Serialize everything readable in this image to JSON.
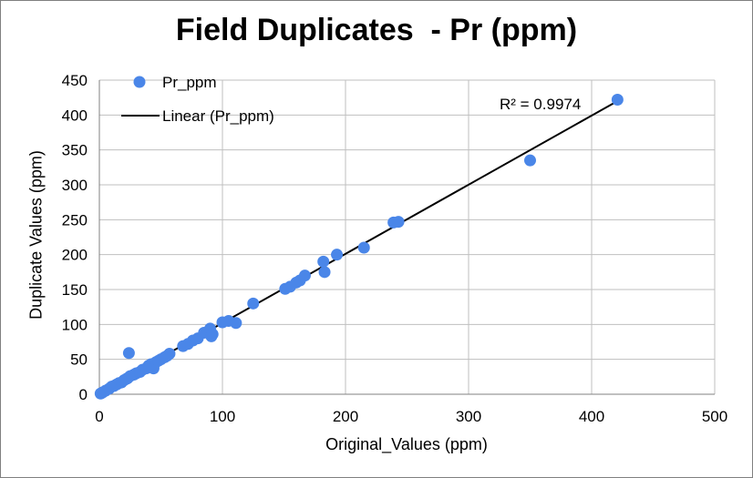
{
  "chart_data": {
    "type": "scatter",
    "title": "Field Duplicates  - Pr (ppm)",
    "xlabel": "Original_Values (ppm)",
    "ylabel": "Duplicate Values (ppm)",
    "xlim": [
      0,
      500
    ],
    "ylim": [
      0,
      450
    ],
    "xticks": [
      0,
      100,
      200,
      300,
      400,
      500
    ],
    "yticks": [
      0,
      50,
      100,
      150,
      200,
      250,
      300,
      350,
      400,
      450
    ],
    "grid": true,
    "legend_position": "top-left",
    "colors": {
      "points": "#4a86e8",
      "trendline": "#000000",
      "grid": "#bfbfbf"
    },
    "series": [
      {
        "name": "Pr_ppm",
        "points": [
          [
            1,
            1
          ],
          [
            2,
            2
          ],
          [
            3,
            3
          ],
          [
            5,
            5
          ],
          [
            8,
            8
          ],
          [
            10,
            11
          ],
          [
            12,
            12
          ],
          [
            14,
            14
          ],
          [
            16,
            16
          ],
          [
            18,
            17
          ],
          [
            20,
            20
          ],
          [
            22,
            22
          ],
          [
            23,
            23
          ],
          [
            24,
            59
          ],
          [
            25,
            26
          ],
          [
            28,
            28
          ],
          [
            30,
            30
          ],
          [
            33,
            32
          ],
          [
            35,
            35
          ],
          [
            38,
            37
          ],
          [
            40,
            41
          ],
          [
            42,
            43
          ],
          [
            44,
            37
          ],
          [
            46,
            46
          ],
          [
            48,
            48
          ],
          [
            50,
            50
          ],
          [
            53,
            53
          ],
          [
            55,
            55
          ],
          [
            57,
            58
          ],
          [
            68,
            69
          ],
          [
            72,
            72
          ],
          [
            76,
            77
          ],
          [
            80,
            80
          ],
          [
            85,
            88
          ],
          [
            90,
            94
          ],
          [
            91,
            83
          ],
          [
            92,
            86
          ],
          [
            100,
            103
          ],
          [
            105,
            105
          ],
          [
            111,
            102
          ],
          [
            125,
            130
          ],
          [
            151,
            151
          ],
          [
            155,
            154
          ],
          [
            160,
            160
          ],
          [
            163,
            163
          ],
          [
            167,
            170
          ],
          [
            182,
            190
          ],
          [
            183,
            175
          ],
          [
            193,
            200
          ],
          [
            215,
            210
          ],
          [
            239,
            246
          ],
          [
            243,
            247
          ],
          [
            350,
            335
          ],
          [
            421,
            422
          ]
        ]
      }
    ],
    "trendline": {
      "name": "Linear (Pr_ppm)",
      "type": "linear",
      "x_range": [
        1,
        421
      ],
      "y_range": [
        4,
        420
      ],
      "r_squared_label": "R² = 0.9974"
    }
  }
}
